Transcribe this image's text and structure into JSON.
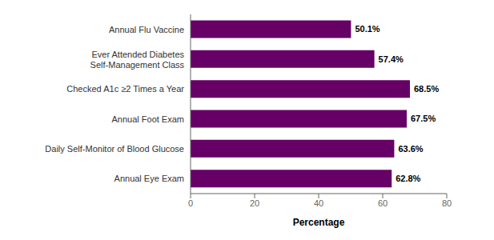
{
  "chart_data": {
    "type": "bar",
    "orientation": "horizontal",
    "categories": [
      "Annual Eye Exam",
      "Daily Self-Monitor of Blood Glucose",
      "Annual Foot Exam",
      "Checked A1c ≥2 Times a Year",
      "Ever Attended Diabetes\nSelf-Management Class",
      "Annual Flu Vaccine"
    ],
    "values": [
      62.8,
      63.6,
      67.5,
      68.5,
      57.4,
      50.1
    ],
    "value_labels": [
      "62.8%",
      "63.6%",
      "67.5%",
      "68.5%",
      "57.4%",
      "50.1%"
    ],
    "data_labels": true,
    "color": "#660066",
    "xlim": [
      0,
      80
    ],
    "xticks": [
      0,
      20,
      40,
      60,
      80
    ],
    "xlabel": "Percentage",
    "grid": false
  }
}
